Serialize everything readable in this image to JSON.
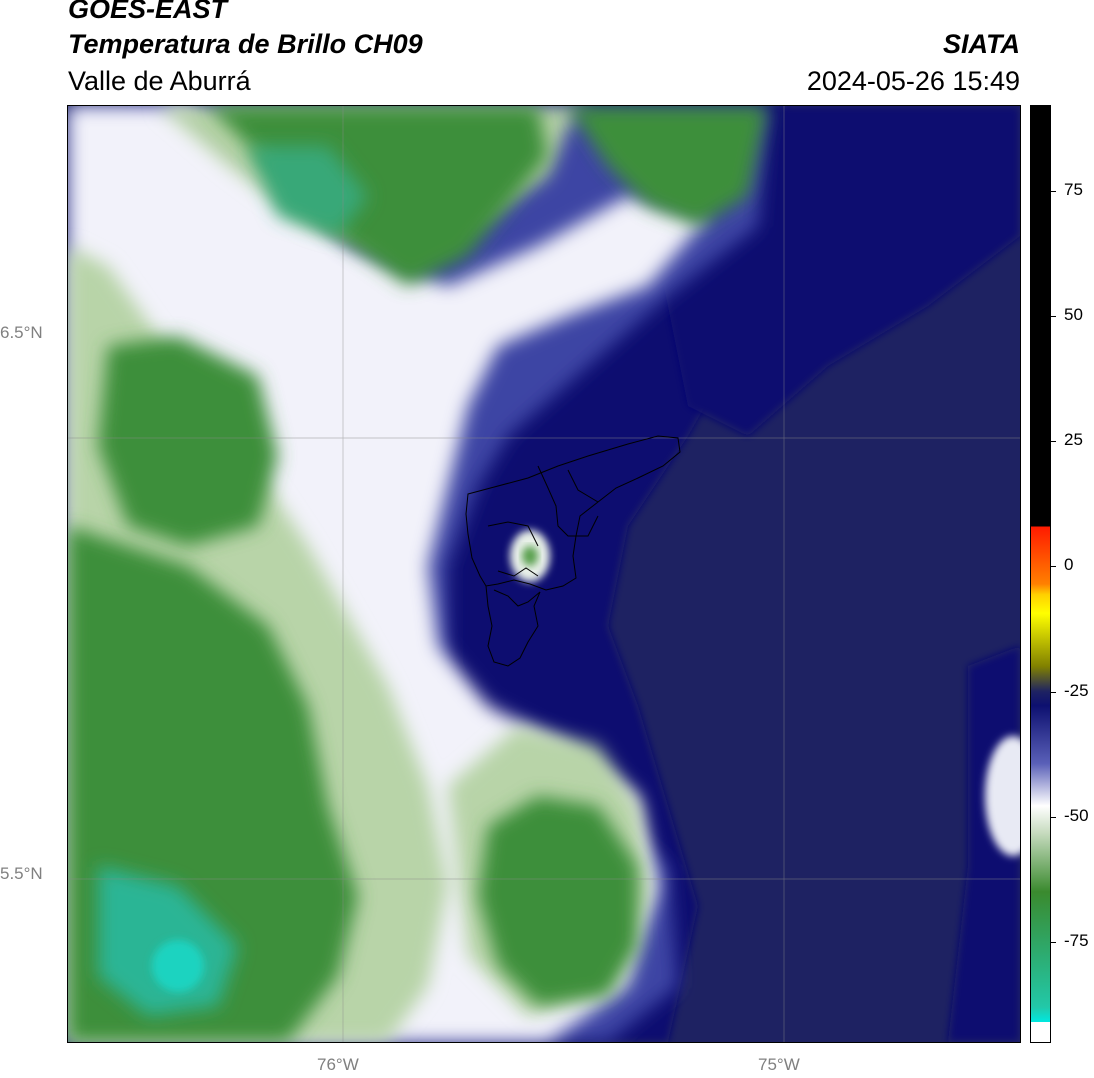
{
  "header": {
    "line1": "GOES-EAST",
    "line2": "Temperatura de Brillo CH09",
    "line3": "Valle de Aburrá",
    "organization": "SIATA",
    "datetime": "2024-05-26 15:49"
  },
  "map": {
    "gridlines": true,
    "latitude_labels": [
      "6.5°N",
      "5.5°N"
    ],
    "longitude_labels": [
      "76°W",
      "75°W"
    ],
    "region_outline": "Valle de Aburrá municipalities"
  },
  "colorbar": {
    "orientation": "vertical",
    "tick_labels": [
      "75",
      "50",
      "25",
      "0",
      "-25",
      "-50",
      "-75"
    ],
    "tick_values": [
      75,
      50,
      25,
      0,
      -25,
      -50,
      -75
    ],
    "range": [
      -95,
      92
    ],
    "colors": {
      "above_25": "#000000",
      "warm": [
        "#ff1a00",
        "#ff8000",
        "#ffd000",
        "#ffff00",
        "#808000"
      ],
      "navy": "#0d1070",
      "dark_navy": "#1e2262",
      "white": "#ffffff",
      "green": "#3a8a2e",
      "teal": "#22c8a8",
      "cyan": "#00e8e0"
    }
  }
}
